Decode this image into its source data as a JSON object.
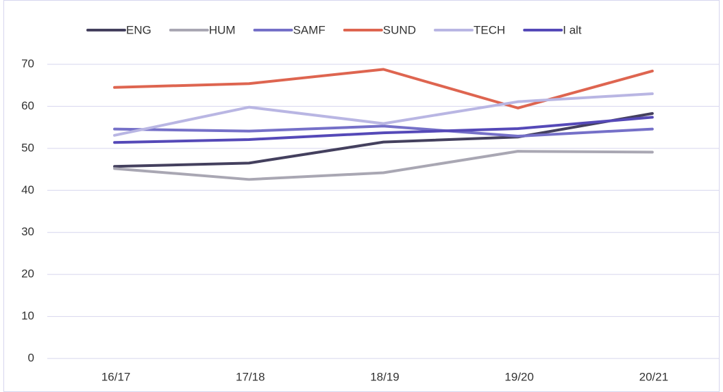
{
  "chart_data": {
    "type": "line",
    "categories": [
      "16/17",
      "17/18",
      "18/19",
      "19/20",
      "20/21"
    ],
    "series": [
      {
        "name": "ENG",
        "color": "#44405e",
        "values": [
          45.7,
          46.5,
          51.5,
          52.7,
          58.3
        ]
      },
      {
        "name": "HUM",
        "color": "#a9a7b3",
        "values": [
          45.2,
          42.6,
          44.2,
          49.3,
          49.1
        ]
      },
      {
        "name": "SAMF",
        "color": "#7570c8",
        "values": [
          54.6,
          54.1,
          55.3,
          52.9,
          54.6
        ]
      },
      {
        "name": "SUND",
        "color": "#de6550",
        "values": [
          64.5,
          65.4,
          68.8,
          59.6,
          68.4
        ]
      },
      {
        "name": "TECH",
        "color": "#b9b6e3",
        "values": [
          53.1,
          59.8,
          55.9,
          61.1,
          63.0
        ]
      },
      {
        "name": "I alt",
        "color": "#5549b8",
        "values": [
          51.4,
          52.1,
          53.7,
          54.7,
          57.4
        ]
      }
    ],
    "ylim": [
      0,
      70
    ],
    "yticks": [
      0,
      10,
      20,
      30,
      40,
      50,
      60,
      70
    ],
    "grid": true,
    "legend": "top"
  }
}
